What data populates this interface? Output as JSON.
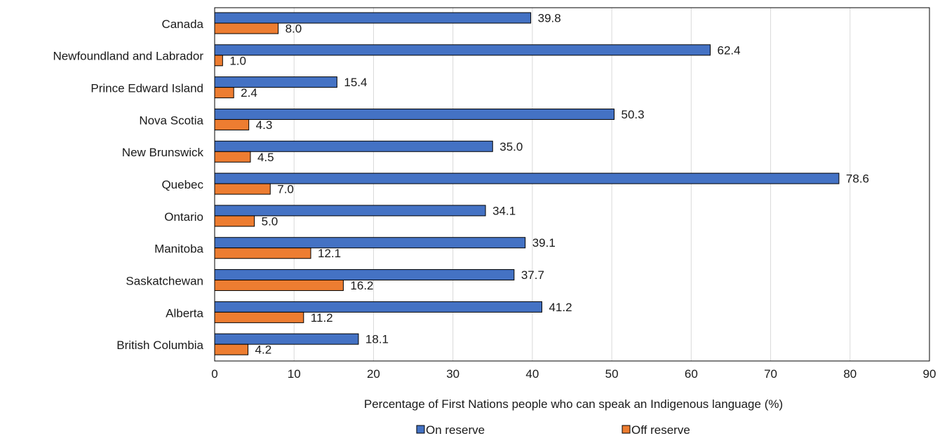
{
  "chart_data": {
    "type": "bar",
    "orientation": "horizontal",
    "title": "",
    "xlabel": "Percentage of First Nations people who can speak an Indigenous language (%)",
    "ylabel": "",
    "xlim": [
      0,
      90
    ],
    "xticks": [
      0,
      10,
      20,
      30,
      40,
      50,
      60,
      70,
      80,
      90
    ],
    "grid": "vertical",
    "legend_position": "bottom",
    "categories": [
      "Canada",
      "Newfoundland and Labrador",
      "Prince Edward Island",
      "Nova Scotia",
      "New Brunswick",
      "Quebec",
      "Ontario",
      "Manitoba",
      "Saskatchewan",
      "Alberta",
      "British Columbia"
    ],
    "series": [
      {
        "name": "On reserve",
        "color": "#4472C4",
        "values": [
          39.8,
          62.4,
          15.4,
          50.3,
          35.0,
          78.6,
          34.1,
          39.1,
          37.7,
          41.2,
          18.1
        ],
        "labels": [
          "39.8",
          "62.4",
          "15.4",
          "50.3",
          "35.0",
          "78.6",
          "34.1",
          "39.1",
          "37.7",
          "41.2",
          "18.1"
        ]
      },
      {
        "name": "Off reserve",
        "color": "#ED7D31",
        "values": [
          8.0,
          1.0,
          2.4,
          4.3,
          4.5,
          7.0,
          5.0,
          12.1,
          16.2,
          11.2,
          4.2
        ],
        "labels": [
          "8.0",
          "1.0",
          "2.4",
          "4.3",
          "4.5",
          "7.0",
          "5.0",
          "12.1",
          "16.2",
          "11.2",
          "4.2"
        ]
      }
    ]
  }
}
